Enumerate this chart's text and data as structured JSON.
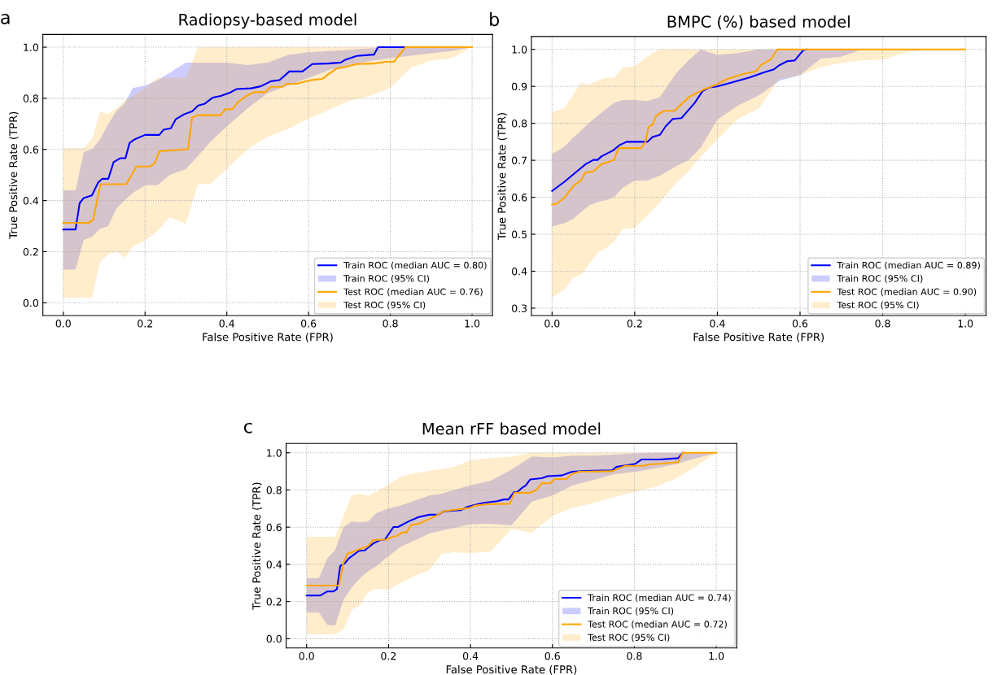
{
  "chart_data": [
    {
      "type": "line",
      "title": "Radiopsy-based model",
      "annotations": [
        "a"
      ],
      "xlabel": "False Positive Rate (FPR)",
      "ylabel": "True Positive Rate (TPR)",
      "xlim": [
        -0.05,
        1.05
      ],
      "ylim": [
        -0.05,
        1.05
      ],
      "xticks": [
        {
          "value": 0,
          "label": "0.0"
        },
        {
          "value": 0.2,
          "label": "0.2"
        },
        {
          "value": 0.4,
          "label": "0.4"
        },
        {
          "value": 0.6,
          "label": "0.6"
        },
        {
          "value": 0.8,
          "label": "0.8"
        },
        {
          "value": 1,
          "label": "1.0"
        }
      ],
      "yticks": [
        {
          "value": 0,
          "label": "0.0"
        },
        {
          "value": 0.2,
          "label": "0.2"
        },
        {
          "value": 0.4,
          "label": "0.4"
        },
        {
          "value": 0.6,
          "label": "0.6"
        },
        {
          "value": 0.8,
          "label": "0.8"
        },
        {
          "value": 1,
          "label": "1.0"
        }
      ],
      "grid": true,
      "legend": "bottom right",
      "series": [
        {
          "name": "Train ROC (median AUC = 0.80)",
          "color": "#0000ff",
          "x": [
            0,
            0.03,
            0.04,
            0.05,
            0.07,
            0.085,
            0.095,
            0.11,
            0.123,
            0.14,
            0.152,
            0.162,
            0.175,
            0.2,
            0.235,
            0.245,
            0.263,
            0.275,
            0.296,
            0.315,
            0.33,
            0.345,
            0.366,
            0.385,
            0.406,
            0.424,
            0.459,
            0.483,
            0.508,
            0.529,
            0.553,
            0.585,
            0.609,
            0.648,
            0.679,
            0.69,
            0.718,
            0.76,
            0.77,
            0.837
          ],
          "values": [
            0.287,
            0.287,
            0.39,
            0.41,
            0.42,
            0.47,
            0.485,
            0.485,
            0.55,
            0.566,
            0.566,
            0.625,
            0.64,
            0.657,
            0.657,
            0.677,
            0.683,
            0.718,
            0.738,
            0.749,
            0.772,
            0.778,
            0.803,
            0.809,
            0.821,
            0.836,
            0.839,
            0.847,
            0.867,
            0.871,
            0.905,
            0.905,
            0.934,
            0.936,
            0.94,
            0.951,
            0.966,
            0.971,
            1.0,
            1.0
          ]
        },
        {
          "name": "Train ROC (95% CI)",
          "type": "area",
          "color": "#0000ff",
          "x": [
            0,
            0.03,
            0.05,
            0.07,
            0.09,
            0.11,
            0.13,
            0.15,
            0.17,
            0.2,
            0.23,
            0.26,
            0.3,
            0.33,
            0.36,
            0.4,
            0.45,
            0.5,
            0.55,
            0.6,
            0.65,
            0.7,
            0.75,
            0.8,
            0.85,
            0.9,
            0.95,
            1.0
          ],
          "lower": [
            0.13,
            0.13,
            0.246,
            0.258,
            0.29,
            0.3,
            0.37,
            0.4,
            0.43,
            0.46,
            0.46,
            0.5,
            0.524,
            0.575,
            0.63,
            0.69,
            0.76,
            0.82,
            0.85,
            0.88,
            0.91,
            0.93,
            0.946,
            0.957,
            0.967,
            0.976,
            0.985,
            1.0
          ],
          "values": [
            null,
            null,
            null,
            null,
            null,
            null,
            null,
            null,
            null,
            null,
            null,
            null,
            null,
            null,
            null,
            null,
            null,
            null,
            null,
            null,
            null,
            null,
            null,
            null,
            null,
            null,
            null,
            null
          ],
          "upper": [
            0.44,
            0.44,
            0.59,
            0.6,
            0.64,
            0.7,
            0.75,
            0.78,
            0.84,
            0.85,
            0.87,
            0.9,
            0.94,
            0.94,
            0.94,
            0.94,
            0.93,
            0.94,
            0.97,
            0.98,
            0.985,
            0.99,
            0.995,
            1.0,
            1.0,
            1.0,
            1.0,
            1.0
          ]
        },
        {
          "name": "Test ROC (median AUC = 0.76)",
          "color": "#ffa500",
          "x": [
            0,
            0.063,
            0.073,
            0.091,
            0.154,
            0.179,
            0.213,
            0.224,
            0.235,
            0.305,
            0.315,
            0.329,
            0.385,
            0.396,
            0.413,
            0.427,
            0.445,
            0.466,
            0.494,
            0.508,
            0.536,
            0.546,
            0.571,
            0.606,
            0.634,
            0.648,
            0.669,
            0.69,
            0.718,
            0.76,
            0.788,
            0.809,
            0.823,
            0.837,
            1.0
          ],
          "values": [
            0.313,
            0.313,
            0.325,
            0.464,
            0.464,
            0.533,
            0.533,
            0.547,
            0.593,
            0.601,
            0.724,
            0.734,
            0.734,
            0.757,
            0.757,
            0.784,
            0.807,
            0.824,
            0.824,
            0.845,
            0.845,
            0.857,
            0.857,
            0.871,
            0.876,
            0.894,
            0.917,
            0.923,
            0.934,
            0.936,
            0.943,
            0.943,
            0.972,
            1.0,
            1.0
          ]
        },
        {
          "name": "Test ROC (95% CI)",
          "type": "area",
          "color": "#ffa500",
          "x": [
            0,
            0.03,
            0.05,
            0.07,
            0.09,
            0.11,
            0.13,
            0.15,
            0.17,
            0.2,
            0.23,
            0.26,
            0.3,
            0.33,
            0.36,
            0.4,
            0.45,
            0.5,
            0.55,
            0.6,
            0.65,
            0.7,
            0.75,
            0.8,
            0.85,
            0.9,
            0.95,
            1.0
          ],
          "lower": [
            0.02,
            0.02,
            0.02,
            0.02,
            0.16,
            0.19,
            0.2,
            0.177,
            0.22,
            0.243,
            0.28,
            0.335,
            0.31,
            0.466,
            0.465,
            0.524,
            0.6,
            0.65,
            0.68,
            0.72,
            0.755,
            0.79,
            0.81,
            0.84,
            0.92,
            0.948,
            0.957,
            1.0
          ],
          "values": [
            null,
            null,
            null,
            null,
            null,
            null,
            null,
            null,
            null,
            null,
            null,
            null,
            null,
            null,
            null,
            null,
            null,
            null,
            null,
            null,
            null,
            null,
            null,
            null,
            null,
            null,
            null,
            null
          ],
          "upper": [
            0.605,
            0.605,
            0.605,
            0.64,
            0.746,
            0.74,
            0.76,
            0.79,
            0.81,
            0.84,
            0.88,
            0.88,
            0.88,
            1.0,
            1.0,
            1.0,
            1.0,
            1.0,
            1.0,
            1.0,
            1.0,
            1.0,
            1.0,
            1.0,
            1.0,
            1.0,
            1.0,
            1.0
          ]
        }
      ]
    },
    {
      "type": "line",
      "title": "BMPC (%) based model",
      "annotations": [
        "b"
      ],
      "xlabel": "False Positive Rate (FPR)",
      "ylabel": "True Positive Rate (TPR)",
      "xlim": [
        -0.05,
        1.05
      ],
      "ylim": [
        0.28,
        1.035
      ],
      "xticks": [
        {
          "value": 0,
          "label": "0.0"
        },
        {
          "value": 0.2,
          "label": "0.2"
        },
        {
          "value": 0.4,
          "label": "0.4"
        },
        {
          "value": 0.6,
          "label": "0.6"
        },
        {
          "value": 0.8,
          "label": "0.8"
        },
        {
          "value": 1,
          "label": "1.0"
        }
      ],
      "yticks": [
        0.3,
        0.4,
        0.5,
        0.6,
        0.7,
        0.8,
        0.9,
        {
          "value": 1,
          "label": "1.0"
        }
      ],
      "grid": true,
      "legend": "bottom right",
      "series": [
        {
          "name": "Train ROC (median AUC = 0.89)",
          "color": "#0000ff",
          "x": [
            0,
            0.03,
            0.06,
            0.082,
            0.1,
            0.11,
            0.12,
            0.148,
            0.163,
            0.18,
            0.231,
            0.243,
            0.261,
            0.275,
            0.292,
            0.313,
            0.324,
            0.345,
            0.364,
            0.38,
            0.4,
            0.436,
            0.478,
            0.513,
            0.537,
            0.548,
            0.569,
            0.587,
            0.608,
            0.615
          ],
          "values": [
            0.617,
            0.642,
            0.67,
            0.69,
            0.701,
            0.701,
            0.711,
            0.727,
            0.741,
            0.75,
            0.75,
            0.763,
            0.769,
            0.792,
            0.812,
            0.814,
            0.828,
            0.855,
            0.887,
            0.897,
            0.9,
            0.911,
            0.924,
            0.938,
            0.946,
            0.956,
            0.968,
            0.97,
            0.998,
            1.0
          ]
        },
        {
          "name": "Train ROC (95% CI)",
          "type": "area",
          "color": "#0000ff",
          "x": [
            0,
            0.03,
            0.05,
            0.07,
            0.09,
            0.11,
            0.13,
            0.15,
            0.17,
            0.2,
            0.23,
            0.26,
            0.3,
            0.33,
            0.36,
            0.4,
            0.45,
            0.5,
            0.55,
            0.6,
            0.65,
            0.7,
            0.75,
            0.8,
            0.85,
            0.9,
            0.95,
            1.0
          ],
          "lower": [
            0.521,
            0.53,
            0.54,
            0.56,
            0.578,
            0.587,
            0.592,
            0.6,
            0.625,
            0.645,
            0.645,
            0.658,
            0.684,
            0.7,
            0.735,
            0.81,
            0.848,
            0.875,
            0.915,
            0.93,
            0.975,
            0.98,
            1.0,
            1.0,
            1.0,
            1.0,
            1.0,
            1.0
          ],
          "values": [
            null,
            null,
            null,
            null,
            null,
            null,
            null,
            null,
            null,
            null,
            null,
            null,
            null,
            null,
            null,
            null,
            null,
            null,
            null,
            null,
            null,
            null,
            null,
            null,
            null,
            null,
            null,
            null
          ],
          "upper": [
            0.716,
            0.737,
            0.76,
            0.78,
            0.802,
            0.82,
            0.838,
            0.855,
            0.863,
            0.863,
            0.86,
            0.87,
            0.935,
            0.97,
            1.0,
            0.985,
            0.99,
            1.0,
            1.0,
            1.0,
            1.0,
            1.0,
            1.0,
            1.0,
            1.0,
            1.0,
            1.0,
            1.0
          ]
        },
        {
          "name": "Test ROC (median AUC = 0.90)",
          "color": "#ffa500",
          "x": [
            0,
            0.012,
            0.03,
            0.051,
            0.07,
            0.08,
            0.1,
            0.12,
            0.15,
            0.161,
            0.215,
            0.226,
            0.233,
            0.243,
            0.252,
            0.271,
            0.296,
            0.331,
            0.366,
            0.394,
            0.422,
            0.464,
            0.492,
            0.506,
            0.53,
            0.545,
            1.0
          ],
          "values": [
            0.58,
            0.583,
            0.599,
            0.63,
            0.646,
            0.666,
            0.67,
            0.69,
            0.701,
            0.733,
            0.733,
            0.749,
            0.79,
            0.796,
            0.821,
            0.834,
            0.834,
            0.871,
            0.891,
            0.903,
            0.919,
            0.934,
            0.94,
            0.958,
            0.974,
            1.0,
            1.0
          ]
        },
        {
          "name": "Test ROC (95% CI)",
          "type": "area",
          "color": "#ffa500",
          "x": [
            0,
            0.03,
            0.05,
            0.07,
            0.09,
            0.11,
            0.13,
            0.15,
            0.17,
            0.2,
            0.23,
            0.26,
            0.3,
            0.33,
            0.36,
            0.4,
            0.45,
            0.5,
            0.55,
            0.6,
            0.65,
            0.7,
            0.75,
            0.8,
            0.85,
            0.9,
            0.95,
            1.0
          ],
          "lower": [
            0.329,
            0.35,
            0.381,
            0.39,
            0.42,
            0.45,
            0.462,
            0.48,
            0.513,
            0.517,
            0.55,
            0.585,
            0.638,
            0.67,
            0.71,
            0.757,
            0.812,
            0.84,
            0.92,
            0.93,
            0.952,
            0.963,
            0.97,
            0.972,
            0.99,
            1.0,
            1.0,
            1.0
          ],
          "values": [
            null,
            null,
            null,
            null,
            null,
            null,
            null,
            null,
            null,
            null,
            null,
            null,
            null,
            null,
            null,
            null,
            null,
            null,
            null,
            null,
            null,
            null,
            null,
            null,
            null,
            null,
            null,
            null
          ],
          "upper": [
            0.83,
            0.842,
            0.875,
            0.91,
            0.905,
            0.915,
            0.923,
            0.923,
            0.95,
            0.955,
            0.98,
            1.0,
            1.0,
            1.0,
            1.0,
            1.0,
            1.0,
            1.0,
            1.0,
            1.0,
            1.0,
            1.0,
            1.0,
            1.0,
            1.0,
            1.0,
            1.0,
            1.0
          ]
        }
      ]
    },
    {
      "type": "line",
      "title": "Mean rFF based model",
      "annotations": [
        "c"
      ],
      "xlabel": "False Positive Rate (FPR)",
      "ylabel": "True Positive Rate (TPR)",
      "xlim": [
        -0.05,
        1.05
      ],
      "ylim": [
        -0.05,
        1.05
      ],
      "xticks": [
        {
          "value": 0,
          "label": "0.0"
        },
        {
          "value": 0.2,
          "label": "0.2"
        },
        {
          "value": 0.4,
          "label": "0.4"
        },
        {
          "value": 0.6,
          "label": "0.6"
        },
        {
          "value": 0.8,
          "label": "0.8"
        },
        {
          "value": 1,
          "label": "1.0"
        }
      ],
      "yticks": [
        {
          "value": 0,
          "label": "0.0"
        },
        {
          "value": 0.2,
          "label": "0.2"
        },
        {
          "value": 0.4,
          "label": "0.4"
        },
        {
          "value": 0.6,
          "label": "0.6"
        },
        {
          "value": 0.8,
          "label": "0.8"
        },
        {
          "value": 1,
          "label": "1.0"
        }
      ],
      "grid": true,
      "legend": "bottom right",
      "series": [
        {
          "name": "Train ROC (median AUC = 0.74)",
          "color": "#0000ff",
          "x": [
            0,
            0.033,
            0.05,
            0.065,
            0.074,
            0.082,
            0.093,
            0.103,
            0.128,
            0.142,
            0.163,
            0.18,
            0.191,
            0.212,
            0.223,
            0.251,
            0.272,
            0.3,
            0.321,
            0.335,
            0.377,
            0.391,
            0.405,
            0.433,
            0.465,
            0.482,
            0.493,
            0.506,
            0.514,
            0.525,
            0.535,
            0.546,
            0.574,
            0.588,
            0.623,
            0.648,
            0.679,
            0.746,
            0.756,
            0.802,
            0.818,
            0.862,
            0.907,
            0.918
          ],
          "values": [
            0.232,
            0.232,
            0.254,
            0.254,
            0.267,
            0.391,
            0.405,
            0.432,
            0.473,
            0.475,
            0.513,
            0.531,
            0.533,
            0.601,
            0.601,
            0.633,
            0.653,
            0.667,
            0.667,
            0.685,
            0.692,
            0.708,
            0.717,
            0.731,
            0.74,
            0.749,
            0.749,
            0.789,
            0.789,
            0.81,
            0.824,
            0.857,
            0.863,
            0.874,
            0.878,
            0.898,
            0.903,
            0.906,
            0.924,
            0.94,
            0.964,
            0.964,
            0.971,
            1.0
          ]
        },
        {
          "name": "Train ROC (95% CI)",
          "type": "area",
          "color": "#0000ff",
          "x": [
            0,
            0.03,
            0.05,
            0.07,
            0.09,
            0.11,
            0.13,
            0.15,
            0.17,
            0.2,
            0.23,
            0.26,
            0.3,
            0.33,
            0.36,
            0.4,
            0.45,
            0.5,
            0.55,
            0.6,
            0.65,
            0.7,
            0.75,
            0.8,
            0.85,
            0.9,
            0.95,
            1.0
          ],
          "lower": [
            0.141,
            0.141,
            0.075,
            0.071,
            0.21,
            0.275,
            0.325,
            0.363,
            0.39,
            0.445,
            0.495,
            0.525,
            0.566,
            0.582,
            0.595,
            0.616,
            0.618,
            0.61,
            0.738,
            0.77,
            0.825,
            0.853,
            0.884,
            0.897,
            0.916,
            0.938,
            0.97,
            1.0
          ],
          "values": [
            null,
            null,
            null,
            null,
            null,
            null,
            null,
            null,
            null,
            null,
            null,
            null,
            null,
            null,
            null,
            null,
            null,
            null,
            null,
            null,
            null,
            null,
            null,
            null,
            null,
            null,
            null,
            null
          ],
          "upper": [
            0.325,
            0.325,
            0.43,
            0.48,
            0.6,
            0.63,
            0.626,
            0.63,
            0.675,
            0.7,
            0.717,
            0.74,
            0.77,
            0.78,
            0.8,
            0.825,
            0.85,
            0.91,
            0.98,
            0.975,
            0.985,
            0.985,
            0.99,
            0.997,
            1.0,
            1.0,
            1.0,
            1.0
          ]
        },
        {
          "name": "Test ROC (median AUC = 0.72)",
          "color": "#ffa500",
          "x": [
            0,
            0.079,
            0.089,
            0.1,
            0.117,
            0.131,
            0.149,
            0.163,
            0.195,
            0.209,
            0.22,
            0.234,
            0.244,
            0.255,
            0.276,
            0.286,
            0.314,
            0.335,
            0.363,
            0.398,
            0.409,
            0.44,
            0.496,
            0.507,
            0.546,
            0.56,
            0.574,
            0.595,
            0.606,
            0.634,
            0.648,
            0.665,
            0.746,
            0.778,
            0.824,
            0.837,
            0.862,
            0.907,
            0.918,
            1.0
          ],
          "values": [
            0.286,
            0.286,
            0.403,
            0.459,
            0.47,
            0.484,
            0.496,
            0.531,
            0.533,
            0.548,
            0.552,
            0.572,
            0.572,
            0.612,
            0.62,
            0.63,
            0.659,
            0.686,
            0.694,
            0.703,
            0.715,
            0.723,
            0.726,
            0.785,
            0.785,
            0.799,
            0.836,
            0.836,
            0.859,
            0.859,
            0.886,
            0.898,
            0.901,
            0.93,
            0.93,
            0.938,
            0.941,
            0.95,
            1.0,
            1.0
          ]
        },
        {
          "name": "Test ROC (95% CI)",
          "type": "area",
          "color": "#ffa500",
          "x": [
            0,
            0.03,
            0.05,
            0.07,
            0.09,
            0.11,
            0.13,
            0.15,
            0.17,
            0.2,
            0.23,
            0.26,
            0.3,
            0.33,
            0.36,
            0.4,
            0.45,
            0.5,
            0.55,
            0.6,
            0.65,
            0.7,
            0.75,
            0.8,
            0.85,
            0.9,
            0.95,
            1.0
          ],
          "lower": [
            0.024,
            0.024,
            0.024,
            0.024,
            0.05,
            0.156,
            0.18,
            0.25,
            0.27,
            0.263,
            0.3,
            0.333,
            0.37,
            0.455,
            0.465,
            0.46,
            0.47,
            0.59,
            0.57,
            0.66,
            0.705,
            0.73,
            0.762,
            0.79,
            0.815,
            0.86,
            0.927,
            1.0
          ],
          "values": [
            null,
            null,
            null,
            null,
            null,
            null,
            null,
            null,
            null,
            null,
            null,
            null,
            null,
            null,
            null,
            null,
            null,
            null,
            null,
            null,
            null,
            null,
            null,
            null,
            null,
            null,
            null,
            null
          ],
          "upper": [
            0.548,
            0.548,
            0.548,
            0.548,
            0.66,
            0.77,
            0.78,
            0.768,
            0.79,
            0.83,
            0.87,
            0.889,
            0.903,
            0.913,
            0.925,
            0.96,
            0.972,
            0.979,
            1.0,
            1.0,
            1.0,
            1.0,
            1.0,
            1.0,
            1.0,
            1.0,
            1.0,
            1.0
          ]
        }
      ]
    }
  ]
}
